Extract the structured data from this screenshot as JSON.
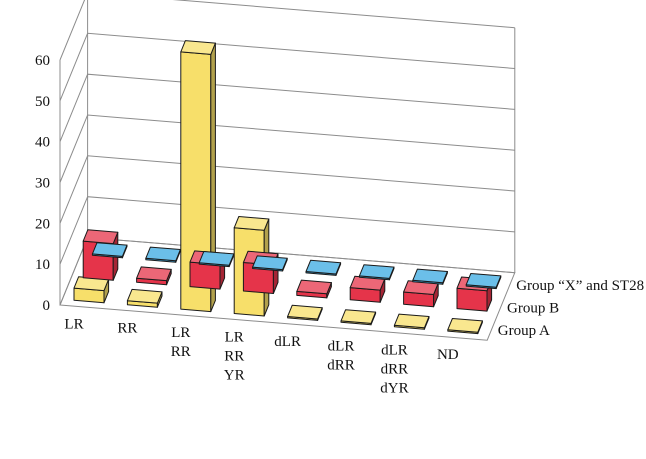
{
  "chart_data": {
    "type": "bar",
    "subtype": "3d-column",
    "title": "",
    "xlabel": "",
    "ylabel": "",
    "ylim": [
      0,
      60
    ],
    "yticks": [
      0,
      10,
      20,
      30,
      40,
      50,
      60
    ],
    "grid": true,
    "categories": [
      [
        "LR"
      ],
      [
        "RR"
      ],
      [
        "LR",
        "RR"
      ],
      [
        "LR",
        "RR",
        "YR"
      ],
      [
        "dLR"
      ],
      [
        "dLR",
        "dRR"
      ],
      [
        "dLR",
        "dRR",
        "dYR"
      ],
      [
        "ND"
      ]
    ],
    "series": [
      {
        "name": "Group A",
        "color": "#f7df6a",
        "values": [
          3,
          1,
          63,
          21,
          0,
          0,
          0,
          0
        ]
      },
      {
        "name": "Group B",
        "color": "#e5344a",
        "values": [
          9,
          1,
          6,
          7,
          1,
          3,
          3,
          5
        ]
      },
      {
        "name": "Group “X” and ST28",
        "color": "#39a9e1",
        "values": [
          0,
          0,
          0,
          0,
          0,
          0,
          0,
          0
        ]
      }
    ]
  }
}
